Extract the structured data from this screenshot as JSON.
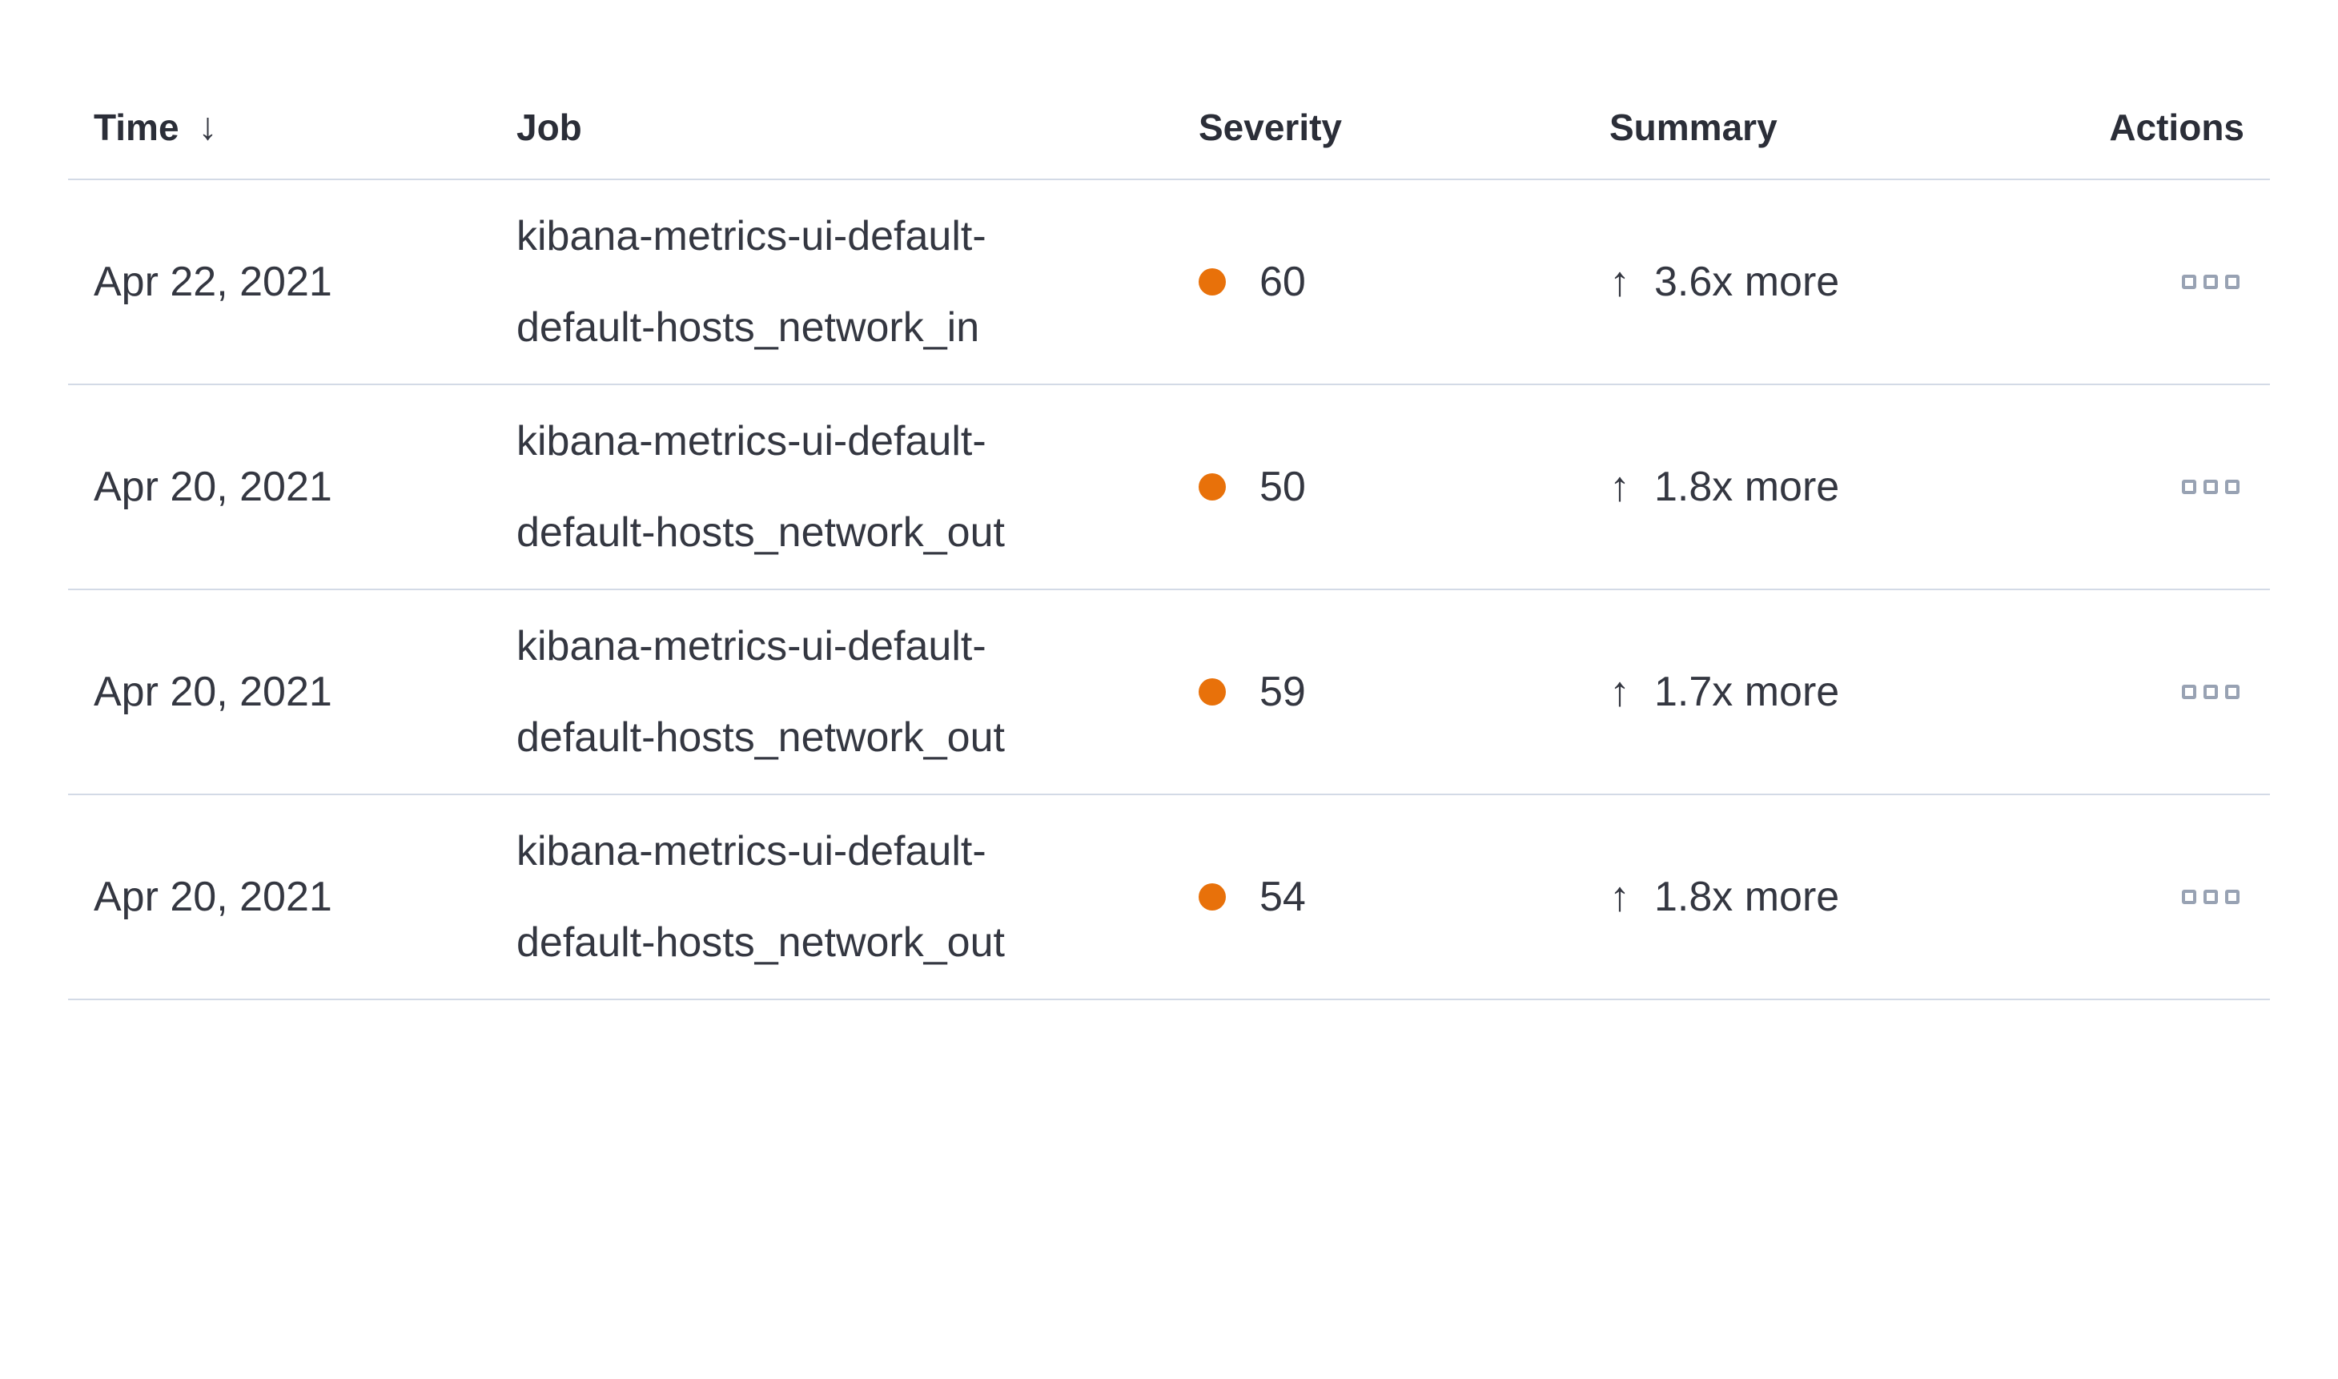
{
  "table": {
    "header": {
      "time": "Time",
      "job": "Job",
      "severity": "Severity",
      "summary": "Summary",
      "actions": "Actions",
      "sort_icon": "↓"
    },
    "rows": [
      {
        "time": "Apr 22, 2021",
        "job": "kibana-metrics-ui-default-default-hosts_network_in",
        "severity": "60",
        "summary_direction": "↑",
        "summary": "3.6x more"
      },
      {
        "time": "Apr 20, 2021",
        "job": "kibana-metrics-ui-default-default-hosts_network_out",
        "severity": "50",
        "summary_direction": "↑",
        "summary": "1.8x more"
      },
      {
        "time": "Apr 20, 2021",
        "job": "kibana-metrics-ui-default-default-hosts_network_out",
        "severity": "59",
        "summary_direction": "↑",
        "summary": "1.7x more"
      },
      {
        "time": "Apr 20, 2021",
        "job": "kibana-metrics-ui-default-default-hosts_network_out",
        "severity": "54",
        "summary_direction": "↑",
        "summary": "1.8x more"
      }
    ],
    "colors": {
      "severity_dot": "#E8710A",
      "text": "#343741",
      "divider": "#D3DAE6",
      "actions_icon": "#98A2B3"
    }
  }
}
